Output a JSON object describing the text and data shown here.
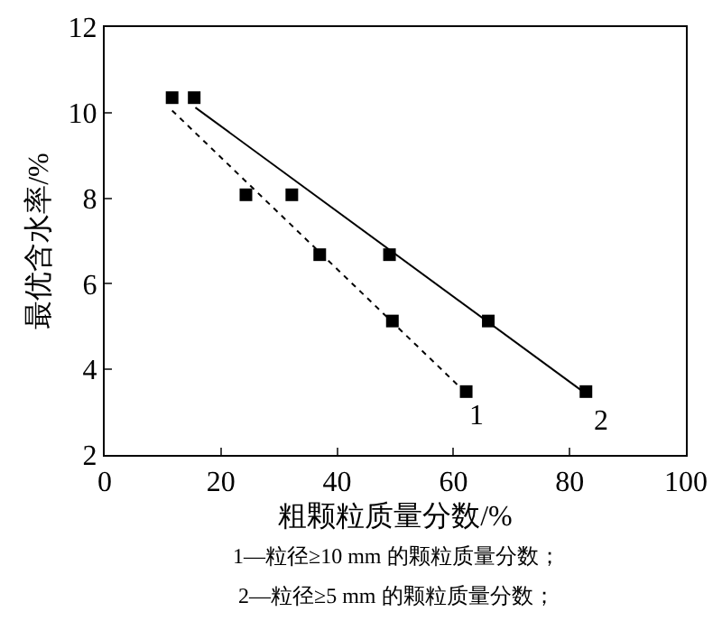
{
  "chart_data": {
    "type": "scatter",
    "xlabel": "粗颗粒质量分数/%",
    "ylabel": "最优含水率/%",
    "xlim": [
      0,
      100
    ],
    "xticks": [
      0,
      20,
      40,
      60,
      80,
      100
    ],
    "ylim": [
      2,
      12
    ],
    "yticks": [
      2,
      4,
      6,
      8,
      10,
      12
    ],
    "grid": false,
    "legend": false,
    "marker": "square",
    "series": [
      {
        "color": "#000000",
        "x": [
          11.6,
          24.3,
          37.0,
          49.5,
          62.2
        ],
        "values": [
          10.35,
          8.08,
          6.68,
          5.13,
          3.48
        ]
      },
      {
        "color": "#000000",
        "x": [
          15.4,
          32.2,
          49.0,
          66.0,
          82.8
        ],
        "values": [
          10.35,
          8.08,
          6.68,
          5.13,
          3.48
        ]
      },
      {
        "type": "line",
        "name": "1",
        "color": "#000000",
        "line_style": "dotted",
        "marker": "none",
        "x": [
          11.6,
          61.0
        ],
        "values": [
          10.05,
          3.6
        ]
      },
      {
        "type": "line",
        "name": "2",
        "color": "#000000",
        "line_style": "solid",
        "marker": "none",
        "x": [
          15.6,
          82.3
        ],
        "values": [
          10.12,
          3.48
        ]
      }
    ],
    "annotations": [
      "1—粒径≥10 mm 的颗粒质量分数；",
      "2—粒径≥5 mm 的颗粒质量分数；"
    ]
  }
}
